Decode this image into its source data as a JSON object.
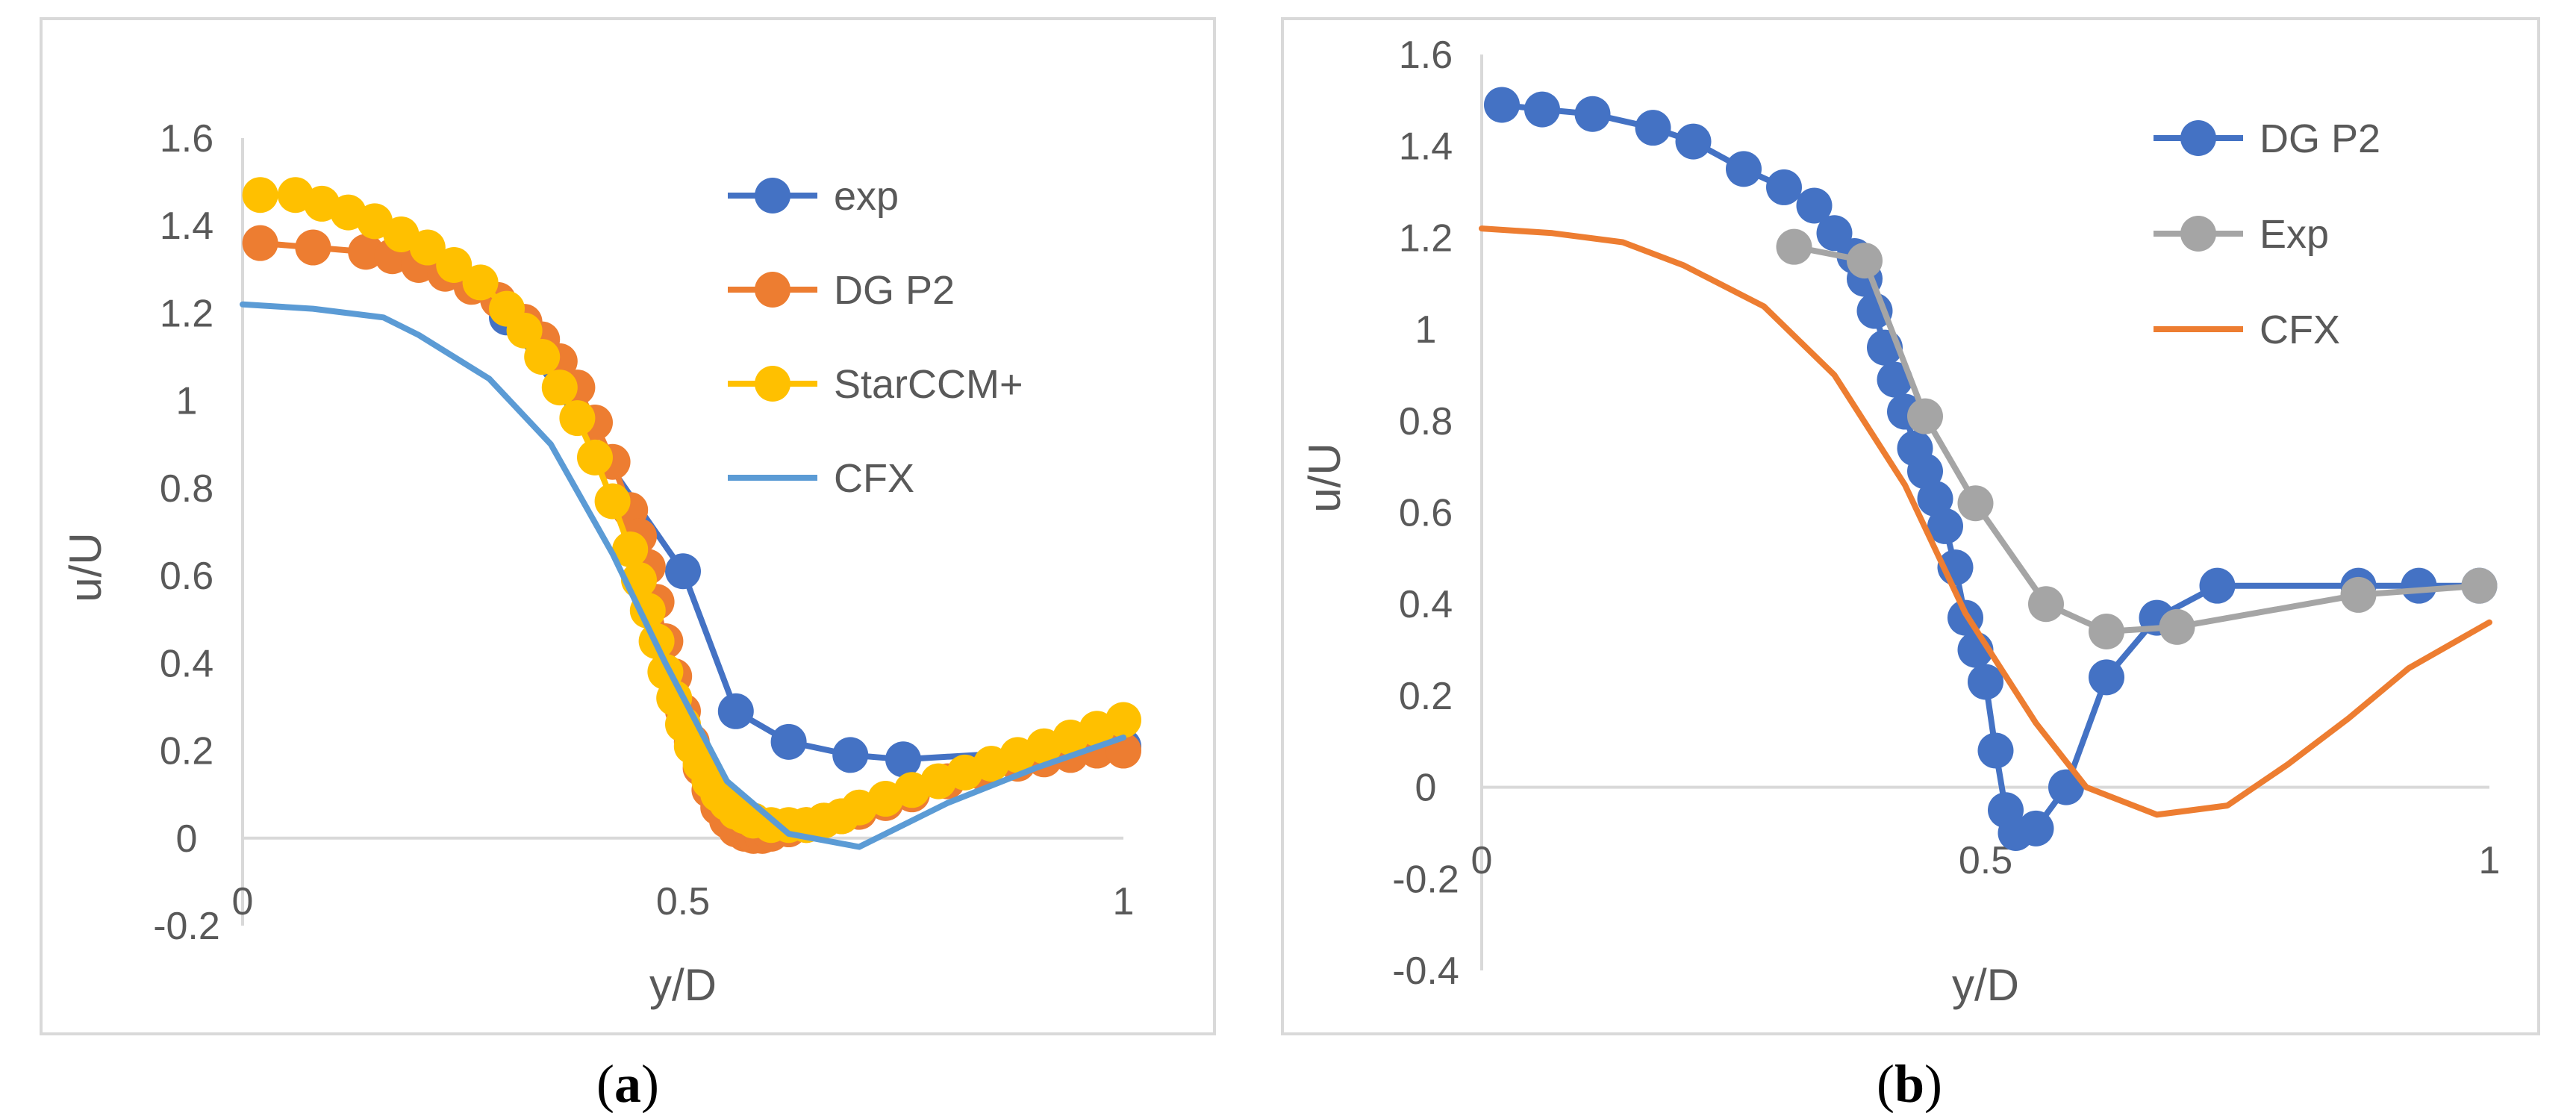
{
  "chart_data": [
    {
      "type": "line",
      "panel": "a",
      "caption": "(a)",
      "caption_letter": "a",
      "xlabel": "y/D",
      "ylabel": "u/U",
      "xlim": [
        0,
        1
      ],
      "ylim": [
        -0.2,
        1.6
      ],
      "xticks": [
        0,
        0.5,
        1
      ],
      "xtick_labels": [
        "0",
        "0.5",
        "1"
      ],
      "yticks": [
        -0.2,
        0,
        0.2,
        0.4,
        0.6,
        0.8,
        1,
        1.2,
        1.4,
        1.6
      ],
      "ytick_labels": [
        "-0.2",
        "0",
        "0.2",
        "0.4",
        "0.6",
        "0.8",
        "1",
        "1.2",
        "1.4",
        "1.6"
      ],
      "legend_position": "top-right",
      "series": [
        {
          "name": "exp",
          "color": "#4472C4",
          "marker": true,
          "x": [
            0.3,
            0.5,
            0.56,
            0.62,
            0.69,
            0.75,
            1.0
          ],
          "y": [
            1.19,
            0.61,
            0.29,
            0.22,
            0.19,
            0.18,
            0.21
          ]
        },
        {
          "name": "DG P2",
          "color": "#ED7D31",
          "marker": true,
          "x": [
            0.02,
            0.08,
            0.14,
            0.17,
            0.2,
            0.23,
            0.26,
            0.29,
            0.32,
            0.34,
            0.36,
            0.38,
            0.4,
            0.42,
            0.44,
            0.45,
            0.46,
            0.47,
            0.48,
            0.49,
            0.5,
            0.51,
            0.52,
            0.53,
            0.54,
            0.55,
            0.56,
            0.57,
            0.58,
            0.59,
            0.6,
            0.62,
            0.64,
            0.66,
            0.68,
            0.7,
            0.73,
            0.76,
            0.8,
            0.84,
            0.88,
            0.91,
            0.94,
            0.97,
            1.0
          ],
          "y": [
            1.36,
            1.35,
            1.34,
            1.33,
            1.31,
            1.29,
            1.26,
            1.23,
            1.18,
            1.14,
            1.09,
            1.03,
            0.95,
            0.86,
            0.75,
            0.69,
            0.62,
            0.54,
            0.45,
            0.37,
            0.29,
            0.22,
            0.16,
            0.11,
            0.07,
            0.04,
            0.02,
            0.01,
            0.005,
            0.005,
            0.01,
            0.02,
            0.03,
            0.04,
            0.05,
            0.06,
            0.08,
            0.1,
            0.13,
            0.15,
            0.17,
            0.18,
            0.19,
            0.2,
            0.2
          ]
        },
        {
          "name": "StarCCM+",
          "color": "#FFC000",
          "marker": true,
          "x": [
            0.02,
            0.06,
            0.09,
            0.12,
            0.15,
            0.18,
            0.21,
            0.24,
            0.27,
            0.3,
            0.32,
            0.34,
            0.36,
            0.38,
            0.4,
            0.42,
            0.44,
            0.45,
            0.46,
            0.47,
            0.48,
            0.49,
            0.5,
            0.51,
            0.52,
            0.53,
            0.54,
            0.55,
            0.56,
            0.57,
            0.58,
            0.6,
            0.62,
            0.64,
            0.66,
            0.68,
            0.7,
            0.73,
            0.76,
            0.79,
            0.82,
            0.85,
            0.88,
            0.91,
            0.94,
            0.97,
            1.0
          ],
          "y": [
            1.47,
            1.47,
            1.45,
            1.43,
            1.41,
            1.38,
            1.35,
            1.31,
            1.27,
            1.21,
            1.16,
            1.1,
            1.03,
            0.96,
            0.87,
            0.77,
            0.66,
            0.59,
            0.52,
            0.45,
            0.38,
            0.32,
            0.26,
            0.21,
            0.17,
            0.13,
            0.1,
            0.08,
            0.06,
            0.05,
            0.04,
            0.03,
            0.03,
            0.03,
            0.04,
            0.05,
            0.07,
            0.09,
            0.11,
            0.13,
            0.15,
            0.17,
            0.19,
            0.21,
            0.23,
            0.25,
            0.27
          ]
        },
        {
          "name": "CFX",
          "color": "#5B9BD5",
          "marker": false,
          "x": [
            0.0,
            0.08,
            0.16,
            0.2,
            0.28,
            0.35,
            0.42,
            0.48,
            0.55,
            0.62,
            0.7,
            0.8,
            0.9,
            1.0
          ],
          "y": [
            1.22,
            1.21,
            1.19,
            1.15,
            1.05,
            0.9,
            0.65,
            0.4,
            0.13,
            0.01,
            -0.02,
            0.08,
            0.16,
            0.23
          ]
        }
      ]
    },
    {
      "type": "line",
      "panel": "b",
      "caption": "(b)",
      "caption_letter": "b",
      "xlabel": "y/D",
      "ylabel": "u/U",
      "xlim": [
        0,
        1
      ],
      "ylim": [
        -0.4,
        1.6
      ],
      "xticks": [
        0,
        0.5,
        1
      ],
      "xtick_labels": [
        "0",
        "0.5",
        "1"
      ],
      "yticks": [
        -0.4,
        -0.2,
        0,
        0.2,
        0.4,
        0.6,
        0.8,
        1,
        1.2,
        1.4,
        1.6
      ],
      "ytick_labels": [
        "-0.4",
        "-0.2",
        "0",
        "0.2",
        "0.4",
        "0.6",
        "0.8",
        "1",
        "1.2",
        "1.4",
        "1.6"
      ],
      "legend_position": "top-right",
      "series": [
        {
          "name": "DG P2",
          "color": "#4472C4",
          "marker": true,
          "x": [
            0.02,
            0.06,
            0.11,
            0.17,
            0.21,
            0.26,
            0.3,
            0.33,
            0.35,
            0.37,
            0.38,
            0.39,
            0.4,
            0.41,
            0.42,
            0.43,
            0.44,
            0.45,
            0.46,
            0.47,
            0.48,
            0.49,
            0.5,
            0.51,
            0.52,
            0.53,
            0.55,
            0.58,
            0.62,
            0.67,
            0.73,
            0.87,
            0.93,
            0.99
          ],
          "y": [
            1.49,
            1.48,
            1.47,
            1.44,
            1.41,
            1.35,
            1.31,
            1.27,
            1.21,
            1.16,
            1.11,
            1.04,
            0.96,
            0.89,
            0.82,
            0.74,
            0.69,
            0.63,
            0.57,
            0.48,
            0.37,
            0.3,
            0.23,
            0.08,
            -0.05,
            -0.1,
            -0.09,
            0.0,
            0.24,
            0.37,
            0.44,
            0.44,
            0.44,
            0.44
          ]
        },
        {
          "name": "Exp",
          "color": "#A5A5A5",
          "marker": true,
          "x": [
            0.31,
            0.38,
            0.44,
            0.49,
            0.56,
            0.62,
            0.69,
            0.87,
            0.99
          ],
          "y": [
            1.18,
            1.15,
            0.81,
            0.62,
            0.4,
            0.34,
            0.35,
            0.42,
            0.44
          ]
        },
        {
          "name": "CFX",
          "color": "#ED7D31",
          "marker": false,
          "x": [
            0.0,
            0.07,
            0.14,
            0.2,
            0.28,
            0.35,
            0.42,
            0.48,
            0.55,
            0.6,
            0.67,
            0.74,
            0.8,
            0.86,
            0.92,
            1.0
          ],
          "y": [
            1.22,
            1.21,
            1.19,
            1.14,
            1.05,
            0.9,
            0.66,
            0.38,
            0.14,
            0.0,
            -0.06,
            -0.04,
            0.05,
            0.15,
            0.26,
            0.36
          ]
        }
      ]
    }
  ]
}
